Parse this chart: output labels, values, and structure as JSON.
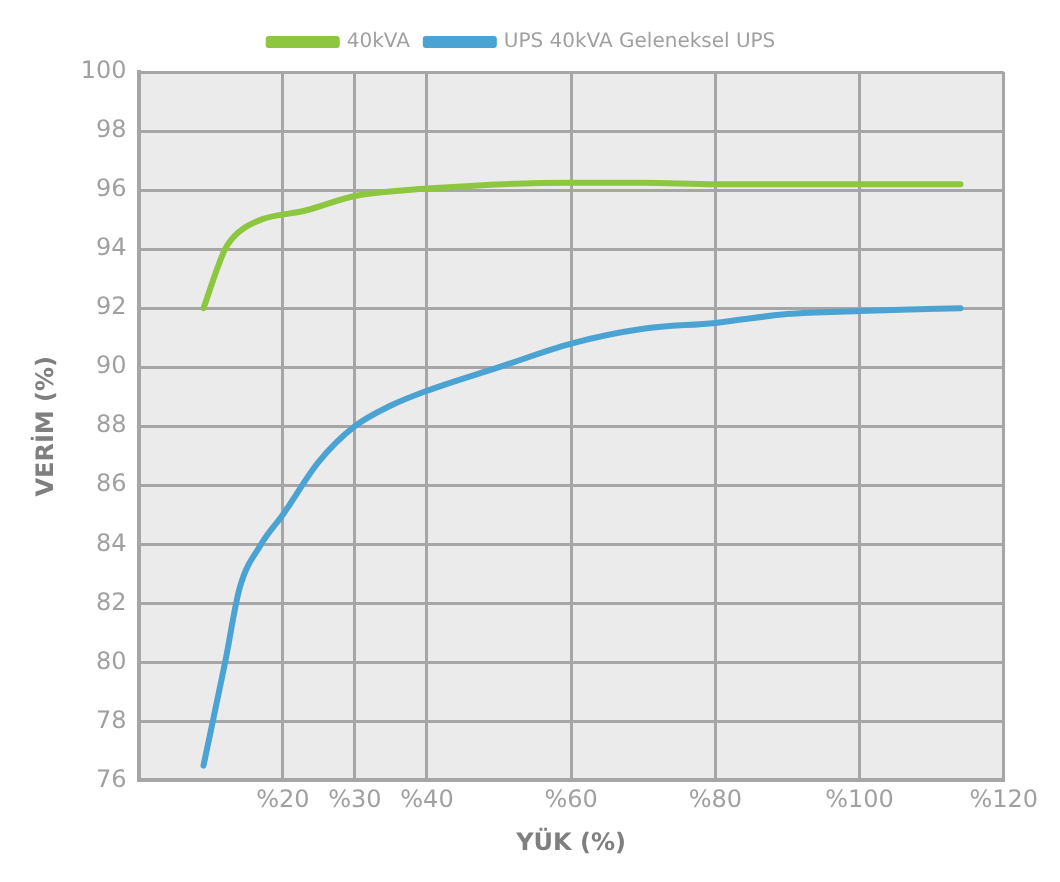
{
  "chart_data": {
    "type": "line",
    "xlabel": "YÜK (%)",
    "ylabel": "VERİM (%)",
    "xlim": [
      0,
      120
    ],
    "xticks": [
      {
        "value": 20,
        "label": "%20"
      },
      {
        "value": 30,
        "label": "%30"
      },
      {
        "value": 40,
        "label": "%40"
      },
      {
        "value": 60,
        "label": "%60"
      },
      {
        "value": 80,
        "label": "%80"
      },
      {
        "value": 100,
        "label": "%100"
      },
      {
        "value": 120,
        "label": "%120"
      }
    ],
    "ylim": [
      76,
      100
    ],
    "yticks": [
      76,
      78,
      80,
      82,
      84,
      86,
      88,
      90,
      92,
      94,
      96,
      98,
      100
    ],
    "grid": true,
    "legend": "top",
    "marker": "none",
    "line_style": "solid",
    "series": [
      {
        "name": "40kVA",
        "color": "#8dc63f",
        "x": [
          9,
          12,
          14,
          17,
          23,
          30,
          40,
          60,
          70,
          80,
          100,
          114
        ],
        "values": [
          92,
          94,
          94.6,
          95,
          95.3,
          95.8,
          96.05,
          96.25,
          96.25,
          96.2,
          96.2,
          96.2
        ]
      },
      {
        "name": "UPS 40kVA Geleneksel UPS",
        "color": "#4ba3d3",
        "x": [
          9,
          12,
          14,
          17,
          20,
          25,
          30,
          35,
          40,
          50,
          60,
          70,
          80,
          90,
          100,
          114
        ],
        "values": [
          76.5,
          80,
          82.5,
          84,
          85,
          86.8,
          88,
          88.7,
          89.2,
          90,
          90.8,
          91.3,
          91.5,
          91.8,
          91.9,
          92
        ]
      }
    ]
  }
}
